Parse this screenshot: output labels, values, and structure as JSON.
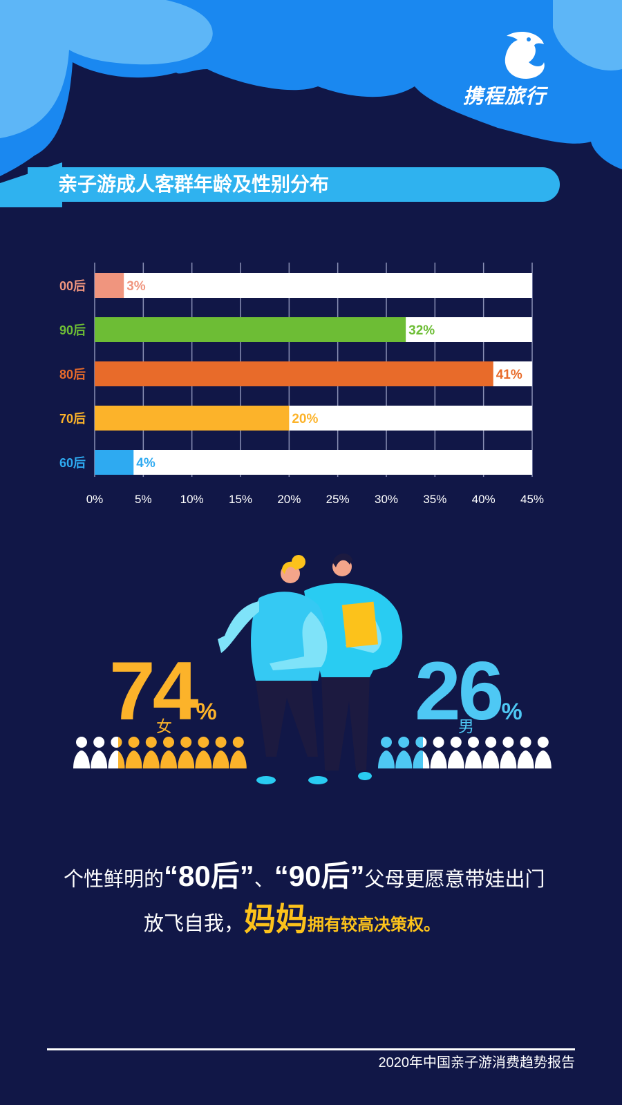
{
  "brand": {
    "name": "携程旅行",
    "logo_icon": "dolphin-logo-icon"
  },
  "title": "亲子游成人客群年龄及性别分布",
  "colors": {
    "background": "#111747",
    "cloud_dark": "#1a88f0",
    "cloud_light": "#5db6f7",
    "title_bar": "#2fb2ef",
    "female": "#fcb32a",
    "male": "#4ec8f4",
    "highlight": "#fcc21b"
  },
  "chart_data": {
    "type": "bar",
    "orientation": "horizontal",
    "categories": [
      "00后",
      "90后",
      "80后",
      "70后",
      "60后"
    ],
    "values": [
      3,
      32,
      41,
      20,
      4
    ],
    "value_labels": [
      "3%",
      "32%",
      "41%",
      "20%",
      "4%"
    ],
    "colors": [
      "#f0957e",
      "#6dbd35",
      "#e86b2a",
      "#fcb32a",
      "#2eaaf1"
    ],
    "xlim": [
      0,
      45
    ],
    "xticks": [
      "0%",
      "5%",
      "10%",
      "15%",
      "20%",
      "25%",
      "30%",
      "35%",
      "40%",
      "45%"
    ],
    "grid": true
  },
  "gender": {
    "female": {
      "value": "74",
      "unit": "%",
      "label": "女",
      "fraction": 0.74,
      "color": "#fcb32a"
    },
    "male": {
      "value": "26",
      "unit": "%",
      "label": "男",
      "fraction": 0.26,
      "color": "#4ec8f4"
    }
  },
  "caption": {
    "line1_pre": "个性鲜明的",
    "line1_q1": "“80后”",
    "line1_sep": "、",
    "line1_q2": "“90后”",
    "line1_post": "父母更愿意带娃出门",
    "line2_pre": "放飞自我，",
    "line2_big": "妈妈",
    "line2_post": "拥有较高决策权。"
  },
  "footer": "2020年中国亲子游消费趋势报告"
}
